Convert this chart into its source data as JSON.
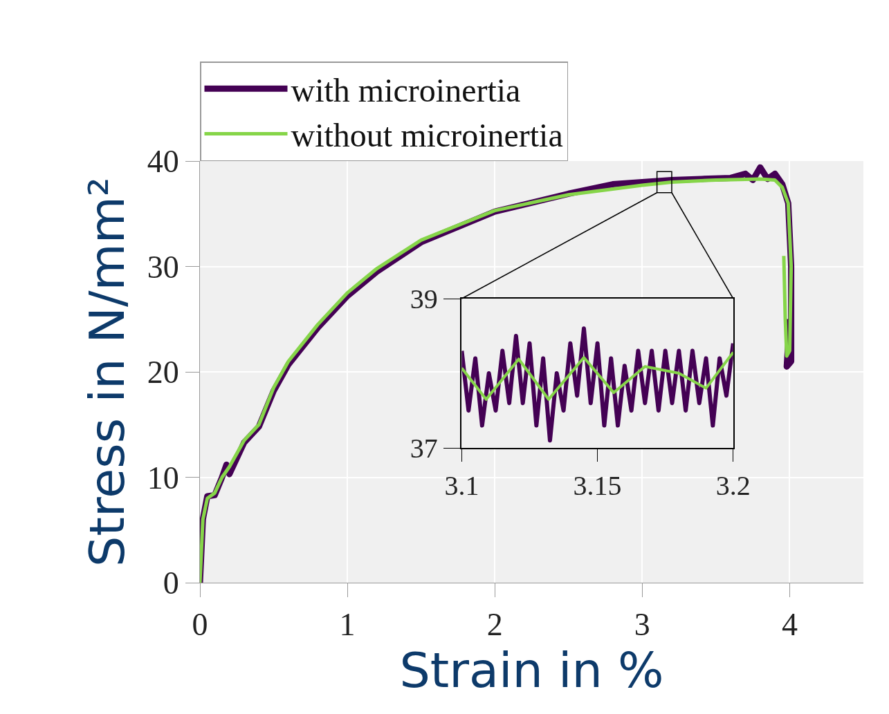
{
  "chart_data": [
    {
      "type": "line",
      "xlabel": "Strain in %",
      "ylabel": "Stress in N/mm²",
      "xlim": [
        0,
        4.5
      ],
      "xticks": [
        0,
        1,
        2,
        3,
        4
      ],
      "ylim": [
        0,
        40
      ],
      "yticks": [
        0,
        10,
        20,
        30,
        40
      ],
      "grid": true,
      "legend": "top",
      "series": [
        {
          "name": "with microinertia",
          "color": "#440154",
          "x": [
            0,
            0.02,
            0.05,
            0.1,
            0.15,
            0.18,
            0.2,
            0.3,
            0.4,
            0.5,
            0.6,
            0.8,
            1.0,
            1.2,
            1.5,
            2.0,
            2.5,
            2.8,
            3.0,
            3.2,
            3.4,
            3.6,
            3.7,
            3.75,
            3.8,
            3.85,
            3.9,
            3.95,
            3.99,
            4.01,
            4.01,
            3.98,
            4.0
          ],
          "values": [
            0,
            6,
            8.2,
            8.3,
            10,
            11.2,
            10.3,
            13.3,
            14.8,
            18.2,
            20.7,
            24.2,
            27.2,
            29.5,
            32.3,
            35.2,
            36.9,
            37.8,
            38.0,
            38.2,
            38.3,
            38.4,
            38.8,
            38.2,
            39.4,
            38.3,
            38.8,
            37.8,
            36,
            30,
            21,
            20.5,
            25
          ]
        },
        {
          "name": "without microinertia",
          "color": "#86d549",
          "x": [
            0,
            0.02,
            0.05,
            0.1,
            0.15,
            0.2,
            0.3,
            0.4,
            0.5,
            0.6,
            0.8,
            1.0,
            1.2,
            1.5,
            2.0,
            2.5,
            3.0,
            3.2,
            3.5,
            3.8,
            3.9,
            3.95,
            3.99,
            4.01,
            4.0,
            3.98,
            3.97,
            3.96
          ],
          "values": [
            0,
            6,
            8,
            8.5,
            10,
            11,
            13.5,
            15,
            18.5,
            21,
            24.5,
            27.5,
            29.8,
            32.5,
            35.3,
            36.8,
            37.7,
            38.0,
            38.2,
            38.3,
            38.2,
            37.5,
            36,
            30,
            22,
            21.5,
            25,
            31
          ]
        }
      ]
    },
    {
      "type": "line",
      "xlim": [
        3.1,
        3.2
      ],
      "xticks": [
        3.1,
        3.15,
        3.2
      ],
      "ylim": [
        37,
        39
      ],
      "yticks": [
        37,
        39
      ],
      "series": [
        {
          "color": "#440154",
          "x": [
            3.1,
            3.1025,
            3.105,
            3.1075,
            3.11,
            3.1125,
            3.115,
            3.1175,
            3.12,
            3.1225,
            3.125,
            3.1275,
            3.13,
            3.1325,
            3.135,
            3.1375,
            3.14,
            3.1425,
            3.145,
            3.1475,
            3.15,
            3.1525,
            3.155,
            3.1575,
            3.16,
            3.1625,
            3.165,
            3.1675,
            3.17,
            3.1725,
            3.175,
            3.1775,
            3.18,
            3.1825,
            3.185,
            3.1875,
            3.19,
            3.1925,
            3.195,
            3.1975,
            3.2
          ],
          "values": [
            38.3,
            37.5,
            38.2,
            37.3,
            38.0,
            37.5,
            38.3,
            37.6,
            38.5,
            37.6,
            38.4,
            37.3,
            38.2,
            37.1,
            38.0,
            37.5,
            38.4,
            37.7,
            38.6,
            37.6,
            38.4,
            37.3,
            38.2,
            37.3,
            38.1,
            37.5,
            38.3,
            37.6,
            38.3,
            37.5,
            38.3,
            37.6,
            38.3,
            37.5,
            38.3,
            37.6,
            38.2,
            37.3,
            38.2,
            37.7,
            38.4
          ]
        },
        {
          "color": "#86d549",
          "x": [
            3.1,
            3.109,
            3.121,
            3.132,
            3.145,
            3.156,
            3.1675,
            3.18,
            3.19,
            3.2
          ],
          "values": [
            38.07,
            37.65,
            38.19,
            37.65,
            38.21,
            37.74,
            38.09,
            38.0,
            37.8,
            38.28
          ]
        }
      ]
    }
  ]
}
